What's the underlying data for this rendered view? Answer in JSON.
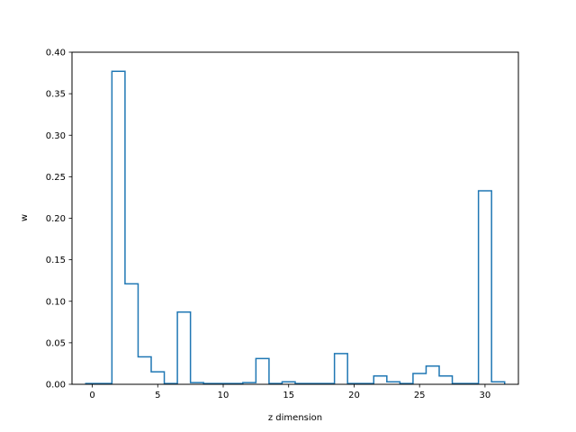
{
  "chart_data": {
    "type": "step",
    "title": "",
    "xlabel": "z dimension",
    "ylabel": "w",
    "xlim": [
      -1.55,
      32.55
    ],
    "ylim": [
      0,
      0.4
    ],
    "grid": false,
    "x_ticks": [
      0,
      5,
      10,
      15,
      20,
      25,
      30
    ],
    "y_ticks": [
      0.0,
      0.05,
      0.1,
      0.15,
      0.2,
      0.25,
      0.3,
      0.35,
      0.4
    ],
    "x_tick_labels": [
      "0",
      "5",
      "10",
      "15",
      "20",
      "25",
      "30"
    ],
    "y_tick_labels": [
      "0.00",
      "0.05",
      "0.10",
      "0.15",
      "0.20",
      "0.25",
      "0.30",
      "0.35",
      "0.40"
    ],
    "series": [
      {
        "color": "#1f77b4",
        "x": [
          0,
          1,
          2,
          3,
          4,
          5,
          6,
          7,
          8,
          9,
          10,
          11,
          12,
          13,
          14,
          15,
          16,
          17,
          18,
          19,
          20,
          21,
          22,
          23,
          24,
          25,
          26,
          27,
          28,
          29,
          30,
          31
        ],
        "values": [
          0.001,
          0.001,
          0.377,
          0.121,
          0.033,
          0.015,
          0.001,
          0.087,
          0.002,
          0.001,
          0.001,
          0.001,
          0.002,
          0.031,
          0.001,
          0.003,
          0.001,
          0.001,
          0.001,
          0.037,
          0.001,
          0.001,
          0.01,
          0.003,
          0.001,
          0.013,
          0.022,
          0.01,
          0.001,
          0.001,
          0.233,
          0.003
        ]
      }
    ]
  }
}
